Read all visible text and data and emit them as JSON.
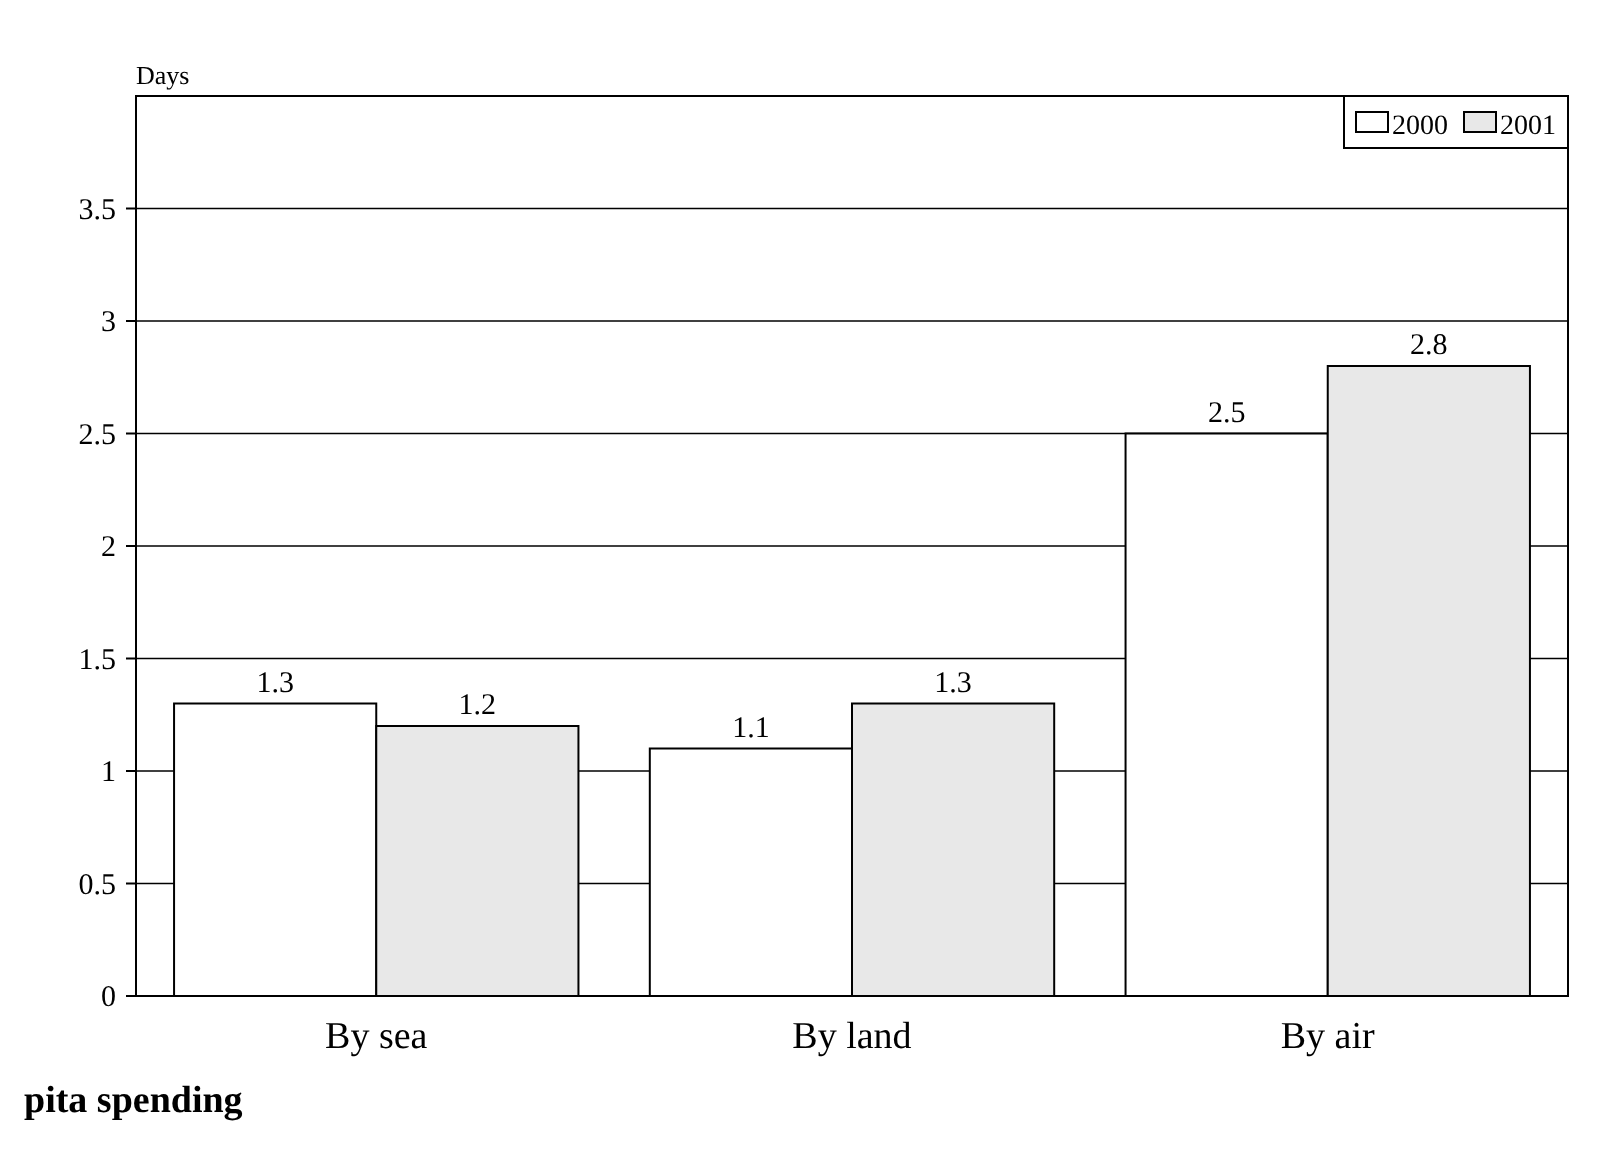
{
  "chart_data": {
    "type": "bar",
    "ylabel": "Days",
    "categories": [
      "By sea",
      "By land",
      "By air"
    ],
    "series": [
      {
        "name": "2000",
        "color": "#ffffff",
        "values": [
          1.3,
          1.1,
          2.5
        ]
      },
      {
        "name": "2001",
        "color": "#e8e8e8",
        "values": [
          1.2,
          1.3,
          2.8
        ]
      }
    ],
    "ylim": [
      0,
      4
    ],
    "yticks": [
      0,
      0.5,
      1,
      1.5,
      2,
      2.5,
      3,
      3.5
    ],
    "grid": "y",
    "legend": "top right",
    "data_labels": true,
    "annotations": [
      "pita spending"
    ]
  }
}
